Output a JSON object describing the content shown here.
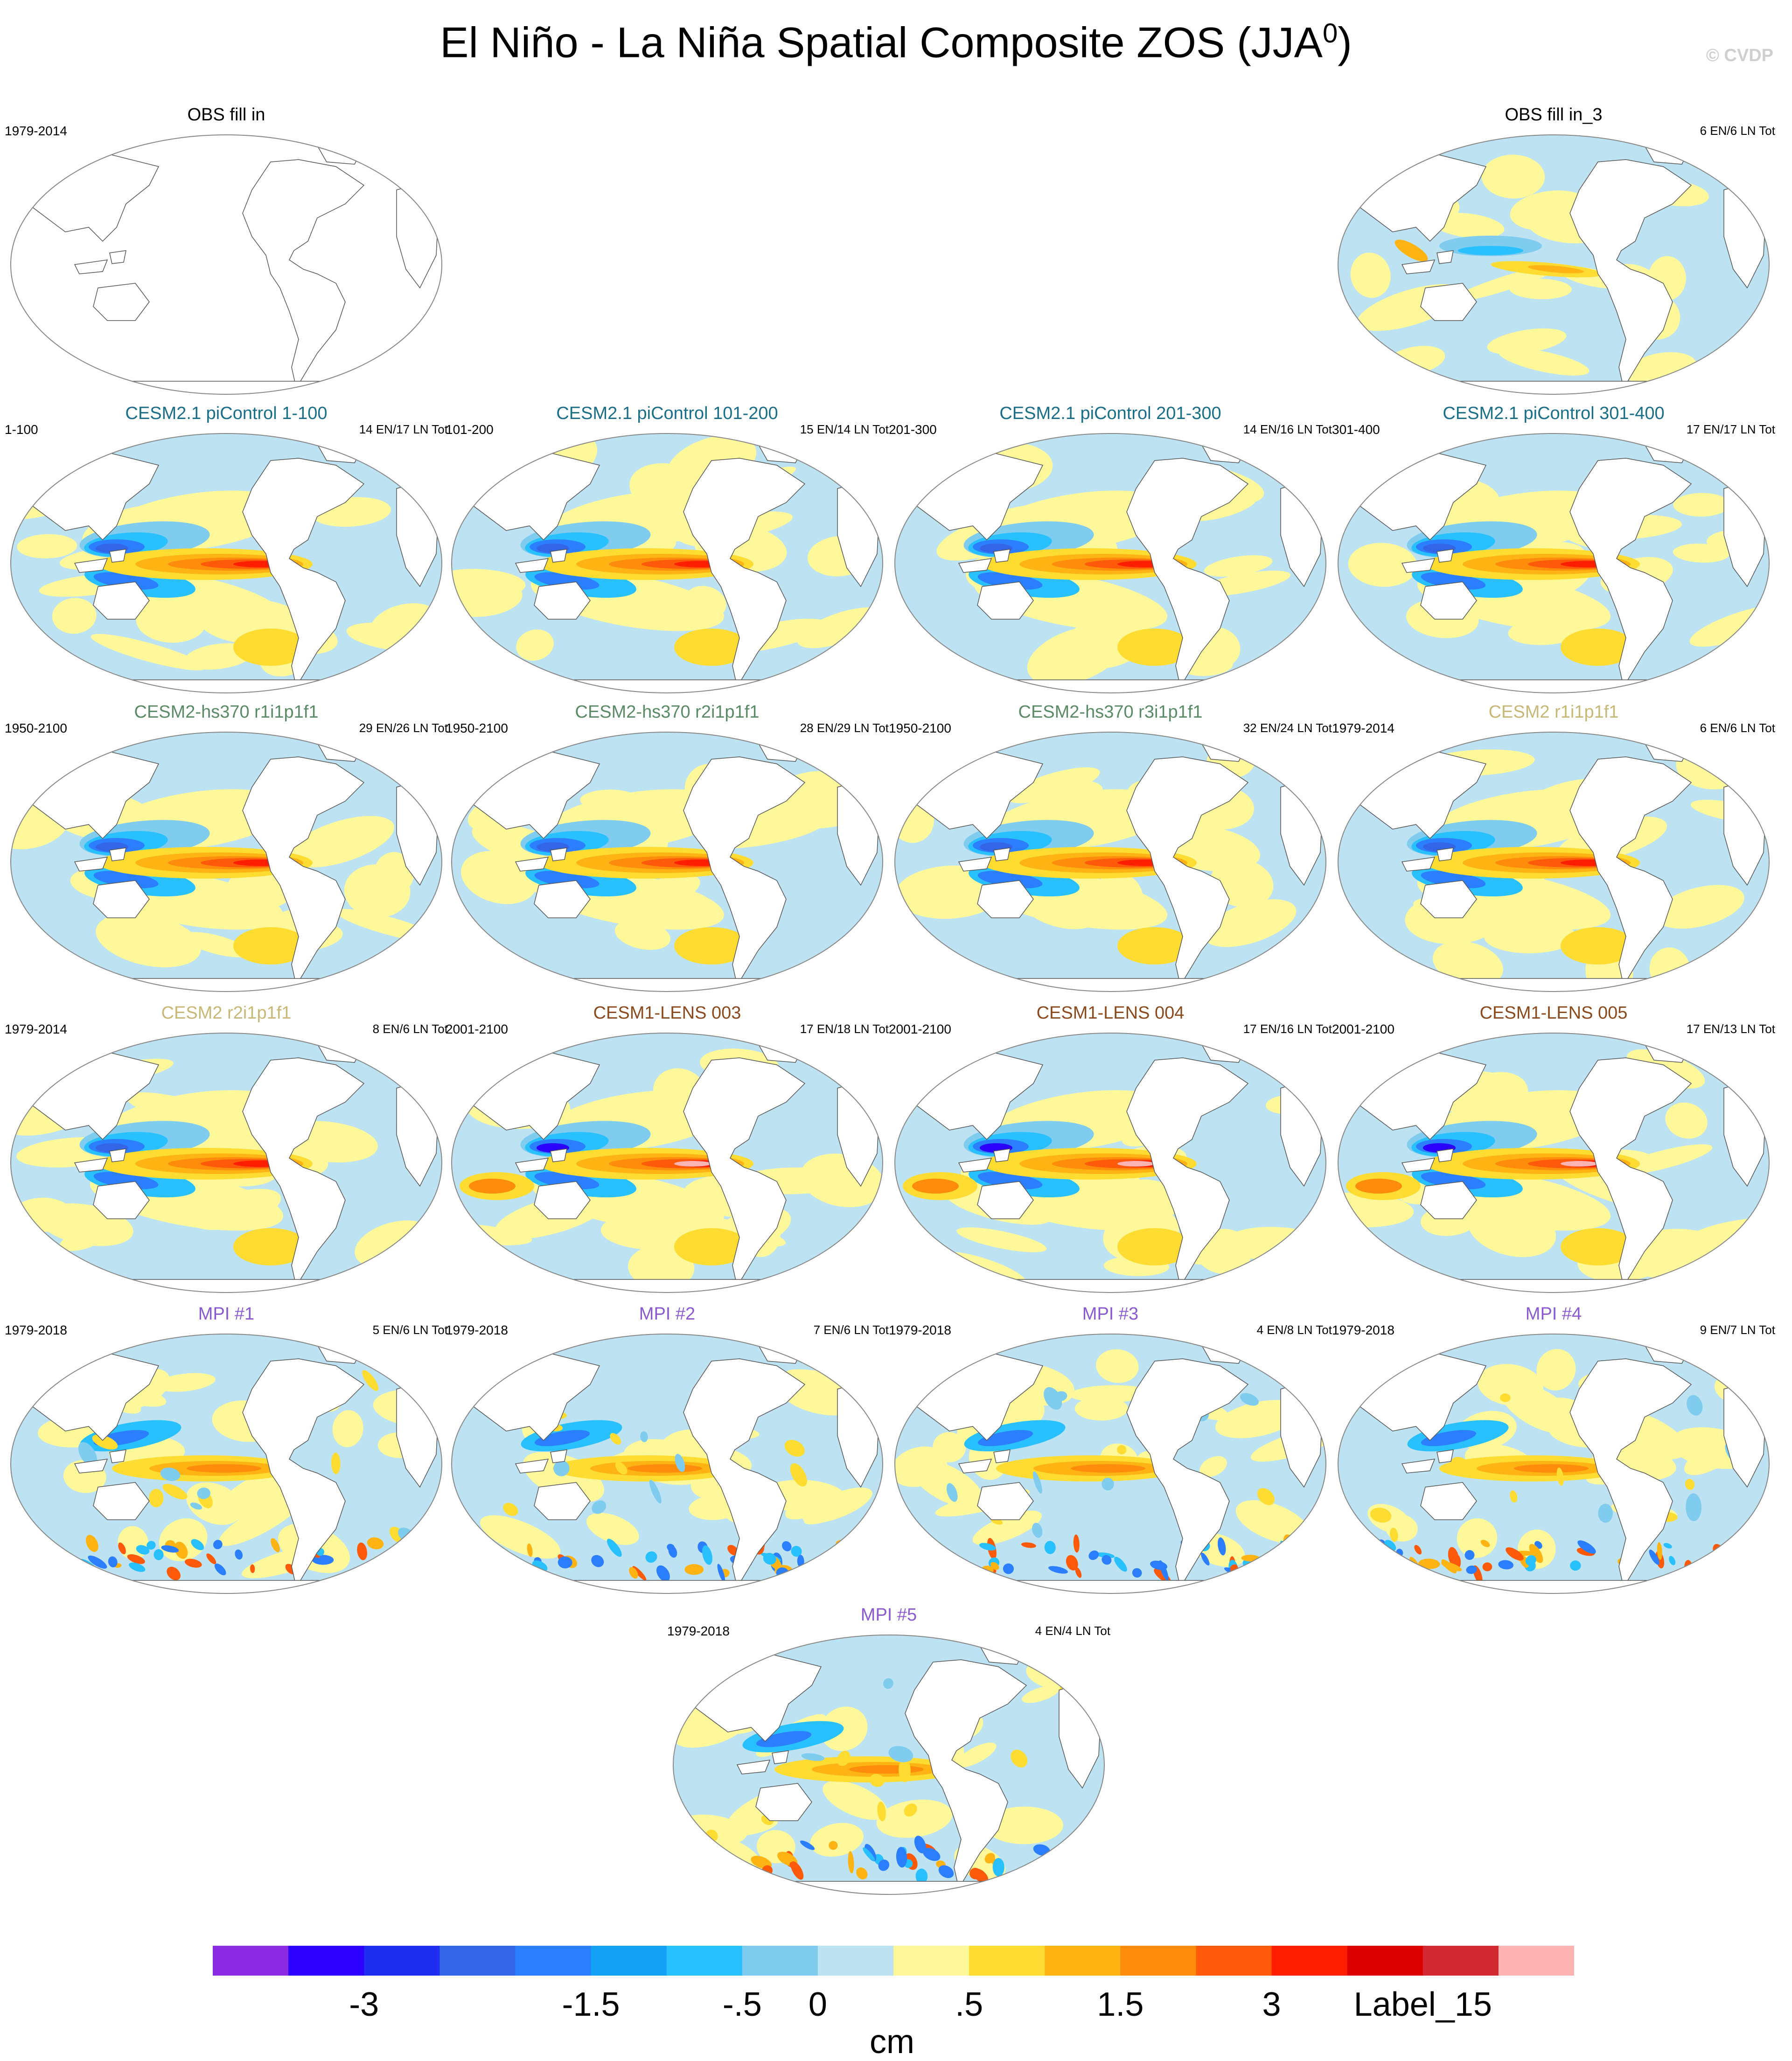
{
  "title": "El Niño - La Niña Spatial Composite ZOS (JJA",
  "title_sup": "0",
  "title_close": ")",
  "copyright": "© CVDP",
  "units": "cm",
  "chart_data": {
    "type": "heatmap",
    "projection": "Robinson, Pacific-centered",
    "colorbar": {
      "colors": [
        "#8a2be2",
        "#2b00ff",
        "#1e2df0",
        "#3366e6",
        "#2b7fff",
        "#14a0f5",
        "#28c0ff",
        "#80ccee",
        "#bde2f2",
        "#fff89a",
        "#ffdc32",
        "#ffb414",
        "#ff8c0a",
        "#ff5a0a",
        "#ff1e00",
        "#dc0000",
        "#d22832",
        "#ffb4b4"
      ],
      "tick_labels": [
        {
          "label": "-3",
          "index": 2
        },
        {
          "label": "-1.5",
          "index": 5
        },
        {
          "label": "-.5",
          "index": 7
        },
        {
          "label": "0",
          "index": 8
        },
        {
          "label": ".5",
          "index": 10
        },
        {
          "label": "1.5",
          "index": 12
        },
        {
          "label": "3",
          "index": 14
        },
        {
          "label": "Label_15",
          "index": 16
        }
      ]
    },
    "panels": [
      {
        "title": "OBS fill in",
        "period": "1979-2014",
        "counts": "",
        "color": "#000000",
        "row": 0,
        "col": 0,
        "style": "empty"
      },
      {
        "title": "OBS fill in_3",
        "period": "",
        "counts": "6 EN/6 LN Tot",
        "color": "#000000",
        "row": 0,
        "col": 3,
        "style": "weak"
      },
      {
        "title": "CESM2.1 piControl 1-100",
        "period": "1-100",
        "counts": "14 EN/17 LN Tot",
        "color": "#1a6e88",
        "row": 1,
        "col": 0,
        "style": "enso"
      },
      {
        "title": "CESM2.1 piControl 101-200",
        "period": "101-200",
        "counts": "15 EN/14 LN Tot",
        "color": "#1a6e88",
        "row": 1,
        "col": 1,
        "style": "enso"
      },
      {
        "title": "CESM2.1 piControl 201-300",
        "period": "201-300",
        "counts": "14 EN/16 LN Tot",
        "color": "#1a6e88",
        "row": 1,
        "col": 2,
        "style": "enso"
      },
      {
        "title": "CESM2.1 piControl 301-400",
        "period": "301-400",
        "counts": "17 EN/17 LN Tot",
        "color": "#1a6e88",
        "row": 1,
        "col": 3,
        "style": "enso"
      },
      {
        "title": "CESM2-hs370 r1i1p1f1",
        "period": "1950-2100",
        "counts": "29 EN/26 LN Tot",
        "color": "#5a8a66",
        "row": 2,
        "col": 0,
        "style": "enso"
      },
      {
        "title": "CESM2-hs370 r2i1p1f1",
        "period": "1950-2100",
        "counts": "28 EN/29 LN Tot",
        "color": "#5a8a66",
        "row": 2,
        "col": 1,
        "style": "enso"
      },
      {
        "title": "CESM2-hs370 r3i1p1f1",
        "period": "1950-2100",
        "counts": "32 EN/24 LN Tot",
        "color": "#5a8a66",
        "row": 2,
        "col": 2,
        "style": "enso"
      },
      {
        "title": "CESM2 r1i1p1f1",
        "period": "1979-2014",
        "counts": "6 EN/6 LN Tot",
        "color": "#c8b878",
        "row": 2,
        "col": 3,
        "style": "enso"
      },
      {
        "title": "CESM2 r2i1p1f1",
        "period": "1979-2014",
        "counts": "8 EN/6 LN Tot",
        "color": "#c8b878",
        "row": 3,
        "col": 0,
        "style": "enso"
      },
      {
        "title": "CESM1-LENS 003",
        "period": "2001-2100",
        "counts": "17 EN/18 LN Tot",
        "color": "#8b4a1e",
        "row": 3,
        "col": 1,
        "style": "strong"
      },
      {
        "title": "CESM1-LENS 004",
        "period": "2001-2100",
        "counts": "17 EN/16 LN Tot",
        "color": "#8b4a1e",
        "row": 3,
        "col": 2,
        "style": "strong"
      },
      {
        "title": "CESM1-LENS 005",
        "period": "2001-2100",
        "counts": "17 EN/13 LN Tot",
        "color": "#8b4a1e",
        "row": 3,
        "col": 3,
        "style": "strong"
      },
      {
        "title": "MPI #1",
        "period": "1979-2018",
        "counts": "5 EN/6 LN Tot",
        "color": "#8a5ad0",
        "row": 4,
        "col": 0,
        "style": "noisy"
      },
      {
        "title": "MPI #2",
        "period": "1979-2018",
        "counts": "7 EN/6 LN Tot",
        "color": "#8a5ad0",
        "row": 4,
        "col": 1,
        "style": "noisy"
      },
      {
        "title": "MPI #3",
        "period": "1979-2018",
        "counts": "4 EN/8 LN Tot",
        "color": "#8a5ad0",
        "row": 4,
        "col": 2,
        "style": "noisy"
      },
      {
        "title": "MPI #4",
        "period": "1979-2018",
        "counts": "9 EN/7 LN Tot",
        "color": "#8a5ad0",
        "row": 4,
        "col": 3,
        "style": "noisy"
      },
      {
        "title": "MPI #5",
        "period": "1979-2018",
        "counts": "4 EN/4 LN Tot",
        "color": "#8a5ad0",
        "row": 5,
        "col": 1.5,
        "style": "noisy"
      }
    ]
  }
}
